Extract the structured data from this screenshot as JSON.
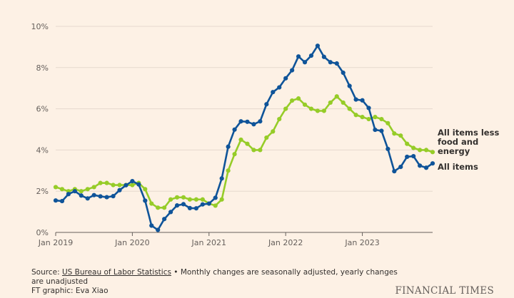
{
  "chart_data": {
    "type": "line",
    "title": "",
    "xlabel": "",
    "ylabel": "",
    "ylim": [
      0,
      10
    ],
    "y_ticks": [
      0,
      2,
      4,
      6,
      8,
      10
    ],
    "y_tick_labels": [
      "0%",
      "2%",
      "4%",
      "6%",
      "8%",
      "10%"
    ],
    "x_tick_labels": [
      "Jan 2019",
      "Jan 2020",
      "Jan 2021",
      "Jan 2022",
      "Jan 2023"
    ],
    "x_tick_index": [
      0,
      12,
      24,
      36,
      48
    ],
    "x_start": "Jan 2019",
    "x_end": "Dec 2023",
    "grid": true,
    "series": [
      {
        "name": "All items",
        "color": "#0f5499",
        "values": [
          1.55,
          1.52,
          1.86,
          2.0,
          1.79,
          1.65,
          1.81,
          1.75,
          1.71,
          1.76,
          2.05,
          2.29,
          2.49,
          2.33,
          1.54,
          0.33,
          0.12,
          0.65,
          0.99,
          1.31,
          1.37,
          1.18,
          1.17,
          1.36,
          1.4,
          1.68,
          2.62,
          4.16,
          4.99,
          5.39,
          5.37,
          5.25,
          5.39,
          6.22,
          6.81,
          7.04,
          7.48,
          7.87,
          8.54,
          8.26,
          8.58,
          9.06,
          8.52,
          8.26,
          8.2,
          7.75,
          7.11,
          6.45,
          6.41,
          6.04,
          4.98,
          4.93,
          4.05,
          2.97,
          3.18,
          3.67,
          3.7,
          3.24,
          3.14,
          3.35
        ]
      },
      {
        "name": "All items less food and energy",
        "color": "#96cc28",
        "values": [
          2.2,
          2.1,
          2.0,
          2.1,
          2.0,
          2.1,
          2.2,
          2.4,
          2.4,
          2.3,
          2.3,
          2.3,
          2.3,
          2.4,
          2.1,
          1.4,
          1.2,
          1.2,
          1.6,
          1.7,
          1.7,
          1.6,
          1.6,
          1.6,
          1.4,
          1.3,
          1.6,
          3.0,
          3.8,
          4.5,
          4.3,
          4.0,
          4.0,
          4.6,
          4.9,
          5.5,
          6.0,
          6.4,
          6.5,
          6.2,
          6.0,
          5.9,
          5.9,
          6.3,
          6.6,
          6.3,
          6.0,
          5.7,
          5.6,
          5.5,
          5.6,
          5.5,
          5.3,
          4.8,
          4.7,
          4.3,
          4.1,
          4.0,
          4.0,
          3.9
        ]
      }
    ],
    "legend": [
      {
        "lines": [
          "All items less",
          "food and",
          "energy"
        ],
        "series": 1
      },
      {
        "lines": [
          "All items"
        ],
        "series": 0
      }
    ],
    "legend_placement": "right"
  },
  "footer": {
    "source_label": "Source: ",
    "source_link": "US Bureau of Labor Statistics",
    "source_note": " • Monthly changes are seasonally adjusted, yearly changes are unadjusted",
    "credit": "FT graphic: Eva Xiao"
  },
  "brand": "FINANCIAL TIMES"
}
